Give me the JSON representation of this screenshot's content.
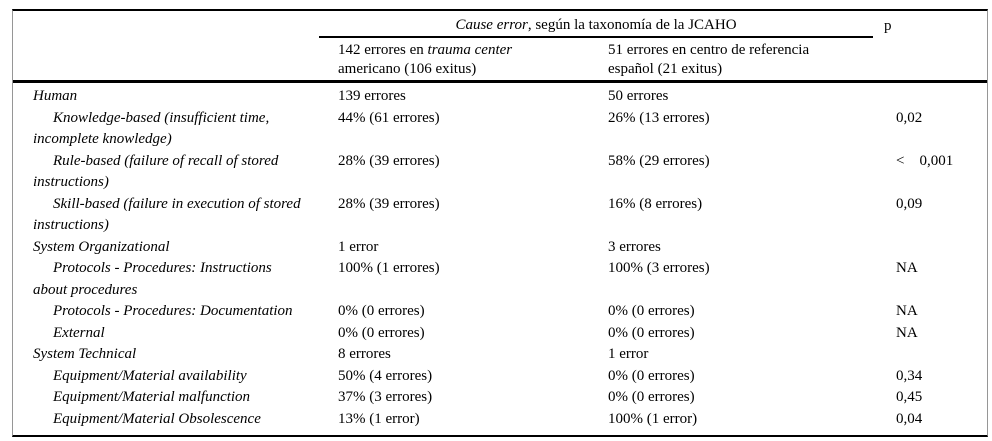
{
  "header": {
    "group_title_italic": "Cause error",
    "group_title_rest": ", según la taxonomía de la JCAHO",
    "p_label": "p",
    "col_us": {
      "line1_prefix": "142 errores en ",
      "line1_italic": "trauma center",
      "line2": "americano (106 exitus)"
    },
    "col_es": {
      "line1": "51 errores en centro de referencia",
      "line2": "español (21 exitus)"
    }
  },
  "rows": [
    {
      "label": "Human",
      "us": "139 errores",
      "es": "50 errores",
      "p": ""
    },
    {
      "label": "Knowledge-based (insufficient time,\nincomplete knowledge)",
      "us": "44% (61 errores)",
      "es": "26% (13 errores)",
      "p": "0,02"
    },
    {
      "label": "Rule-based (failure of recall of stored\ninstructions)",
      "us": "28% (39 errores)",
      "es": "58% (29 errores)",
      "p": "<    0,001"
    },
    {
      "label": "Skill-based (failure in execution of stored\ninstructions)",
      "us": "28% (39 errores)",
      "es": "16% (8 errores)",
      "p": "0,09"
    },
    {
      "label": "System Organizational",
      "us": "1 error",
      "es": "3 errores",
      "p": ""
    },
    {
      "label": "Protocols - Procedures: Instructions\nabout procedures",
      "us": "100% (1 errores)",
      "es": "100% (3 errores)",
      "p": "NA"
    },
    {
      "label": "Protocols - Procedures: Documentation",
      "us": "0% (0 errores)",
      "es": "0% (0 errores)",
      "p": "NA"
    },
    {
      "label": "External",
      "us": "0% (0 errores)",
      "es": "0% (0 errores)",
      "p": "NA"
    },
    {
      "label": "System Technical",
      "us": "8 errores",
      "es": "1 error",
      "p": ""
    },
    {
      "label": "Equipment/Material availability",
      "us": "50% (4 errores)",
      "es": "0% (0 errores)",
      "p": "0,34"
    },
    {
      "label": "Equipment/Material malfunction",
      "us": "37% (3 errores)",
      "es": "0% (0 errores)",
      "p": "0,45"
    },
    {
      "label": "Equipment/Material Obsolescence",
      "us": "13% (1 error)",
      "es": "100% (1 error)",
      "p": "0,04"
    }
  ]
}
